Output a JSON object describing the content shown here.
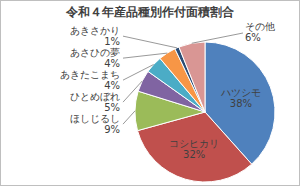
{
  "chart_data": {
    "type": "pie",
    "title": "令和４年産品種別作付面積割合",
    "categories": [
      "ハツシモ",
      "コシヒカリ",
      "ほしじるし",
      "ひとめぼれ",
      "あきたこまち",
      "あさひの夢",
      "あきさかり",
      "その他"
    ],
    "values": [
      38,
      32,
      9,
      5,
      4,
      4,
      1,
      6
    ],
    "value_labels": [
      "38%",
      "32%",
      "9%",
      "5%",
      "4%",
      "4%",
      "1%",
      "6%"
    ],
    "colors": [
      "#4f81bd",
      "#c0504d",
      "#9bbb59",
      "#8064a2",
      "#4bacc6",
      "#f79646",
      "#2c4d75",
      "#d99694"
    ],
    "data_labels": true
  }
}
